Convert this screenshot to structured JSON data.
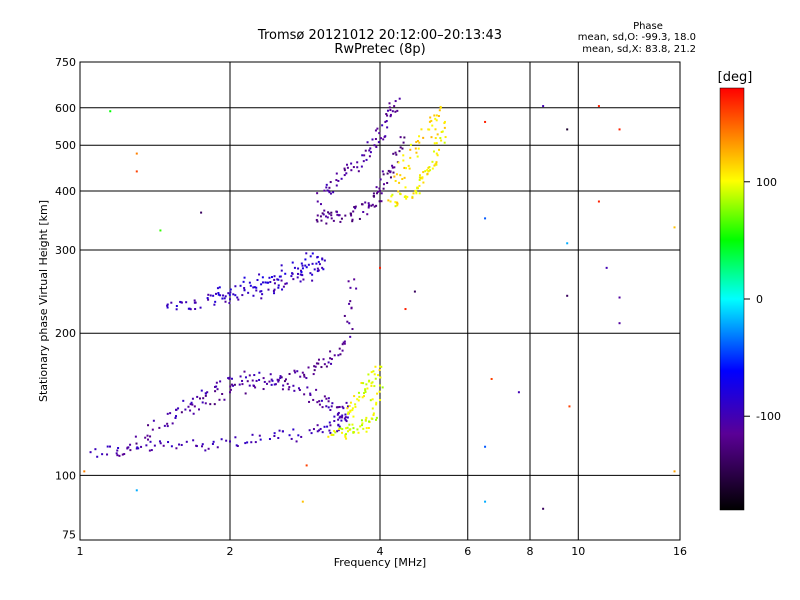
{
  "chart_data": {
    "type": "scatter",
    "title": "Tromsø 20121012 20:12:00–20:13:43",
    "subtitle": "RwPretec (8p)",
    "xlabel": "Frequency [MHz]",
    "ylabel": "Stationary phase Virtual Height [km]",
    "xscale": "log",
    "yscale": "log",
    "xlim": [
      1,
      16
    ],
    "ylim": [
      73,
      750
    ],
    "xticks": [
      1,
      2,
      4,
      6,
      8,
      10,
      16
    ],
    "yticks": [
      75,
      100,
      200,
      300,
      400,
      500,
      600,
      750
    ],
    "grid": true,
    "phase_box": {
      "title": "Phase",
      "line1": "mean, sd,O: -99.3, 18.0",
      "line2": "mean, sd,X:  83.8, 21.2"
    },
    "colorbar": {
      "label": "[deg]",
      "range": [
        -180,
        180
      ],
      "ticks": [
        -100,
        0,
        100
      ],
      "colormap": "rainbow",
      "colors": [
        "#000000",
        "#5a0096",
        "#0000ff",
        "#00ffff",
        "#00ff00",
        "#ffff00",
        "#ff0000"
      ]
    },
    "traces": [
      {
        "name": "",
        "x": [
          1.05,
          1.3,
          1.6,
          2.0,
          2.5,
          3.0,
          3.3,
          3.45
        ],
        "y": [
          112,
          114,
          116,
          118,
          120,
          124,
          128,
          140
        ],
        "phase": -100
      },
      {
        "name": "",
        "x": [
          1.2,
          1.4,
          1.7,
          2.0,
          2.4,
          2.8,
          3.1,
          3.4,
          3.55
        ],
        "y": [
          110,
          125,
          140,
          150,
          158,
          165,
          172,
          190,
          260
        ],
        "phase": -115
      },
      {
        "name": "",
        "x": [
          1.5,
          1.8,
          2.1,
          2.5,
          2.9,
          3.2,
          3.4
        ],
        "y": [
          135,
          150,
          162,
          158,
          148,
          140,
          132
        ],
        "phase": -105
      },
      {
        "name": "",
        "x": [
          3.2,
          3.45,
          3.65,
          3.85,
          4.0
        ],
        "y": [
          122,
          124,
          127,
          132,
          155
        ],
        "phase": 95
      },
      {
        "name": "",
        "x": [
          3.45,
          3.6,
          3.8,
          4.0
        ],
        "y": [
          135,
          145,
          158,
          170
        ],
        "phase": 100
      },
      {
        "name": "",
        "x": [
          1.5,
          1.7,
          2.0,
          2.3,
          2.6,
          2.9,
          3.1
        ],
        "y": [
          230,
          232,
          236,
          245,
          255,
          268,
          285
        ],
        "phase": -95
      },
      {
        "name": "",
        "x": [
          1.85,
          2.1,
          2.4,
          2.7,
          3.0
        ],
        "y": [
          240,
          252,
          262,
          275,
          290
        ],
        "phase": -85
      },
      {
        "name": "",
        "x": [
          3.0,
          3.2,
          3.5,
          3.8,
          4.0,
          4.2,
          4.4
        ],
        "y": [
          355,
          350,
          355,
          372,
          400,
          440,
          520
        ],
        "phase": -120
      },
      {
        "name": "",
        "x": [
          3.0,
          3.3,
          3.6,
          3.9,
          4.1,
          4.3
        ],
        "y": [
          380,
          420,
          460,
          500,
          560,
          620
        ],
        "phase": -110
      },
      {
        "name": "",
        "x": [
          4.2,
          4.5,
          4.8,
          5.0,
          5.2,
          5.4
        ],
        "y": [
          380,
          390,
          410,
          440,
          480,
          560
        ],
        "phase": 105
      },
      {
        "name": "",
        "x": [
          4.3,
          4.6,
          5.0,
          5.3
        ],
        "y": [
          420,
          470,
          540,
          600
        ],
        "phase": 110
      }
    ],
    "scattered_points": [
      {
        "x": 1.02,
        "y": 102,
        "phase": 140
      },
      {
        "x": 1.3,
        "y": 93,
        "phase": -20
      },
      {
        "x": 1.3,
        "y": 480,
        "phase": 140
      },
      {
        "x": 1.3,
        "y": 440,
        "phase": 160
      },
      {
        "x": 1.15,
        "y": 590,
        "phase": 50
      },
      {
        "x": 1.45,
        "y": 330,
        "phase": 60
      },
      {
        "x": 1.75,
        "y": 360,
        "phase": -140
      },
      {
        "x": 2.8,
        "y": 88,
        "phase": 120
      },
      {
        "x": 2.85,
        "y": 105,
        "phase": 160
      },
      {
        "x": 4.0,
        "y": 275,
        "phase": 170
      },
      {
        "x": 4.5,
        "y": 225,
        "phase": 170
      },
      {
        "x": 4.7,
        "y": 245,
        "phase": -140
      },
      {
        "x": 6.5,
        "y": 560,
        "phase": 170
      },
      {
        "x": 6.5,
        "y": 350,
        "phase": -40
      },
      {
        "x": 6.5,
        "y": 88,
        "phase": -20
      },
      {
        "x": 6.5,
        "y": 115,
        "phase": -40
      },
      {
        "x": 6.7,
        "y": 160,
        "phase": 160
      },
      {
        "x": 7.6,
        "y": 150,
        "phase": -100
      },
      {
        "x": 8.5,
        "y": 605,
        "phase": -100
      },
      {
        "x": 8.5,
        "y": 85,
        "phase": -140
      },
      {
        "x": 9.5,
        "y": 540,
        "phase": -160
      },
      {
        "x": 9.5,
        "y": 310,
        "phase": -20
      },
      {
        "x": 9.5,
        "y": 240,
        "phase": -140
      },
      {
        "x": 9.6,
        "y": 140,
        "phase": 160
      },
      {
        "x": 11.0,
        "y": 605,
        "phase": 170
      },
      {
        "x": 11.0,
        "y": 380,
        "phase": 170
      },
      {
        "x": 11.4,
        "y": 275,
        "phase": -100
      },
      {
        "x": 12.1,
        "y": 540,
        "phase": 170
      },
      {
        "x": 12.1,
        "y": 238,
        "phase": -110
      },
      {
        "x": 12.1,
        "y": 210,
        "phase": -110
      },
      {
        "x": 15.6,
        "y": 335,
        "phase": 120
      },
      {
        "x": 15.6,
        "y": 102,
        "phase": 130
      }
    ]
  }
}
